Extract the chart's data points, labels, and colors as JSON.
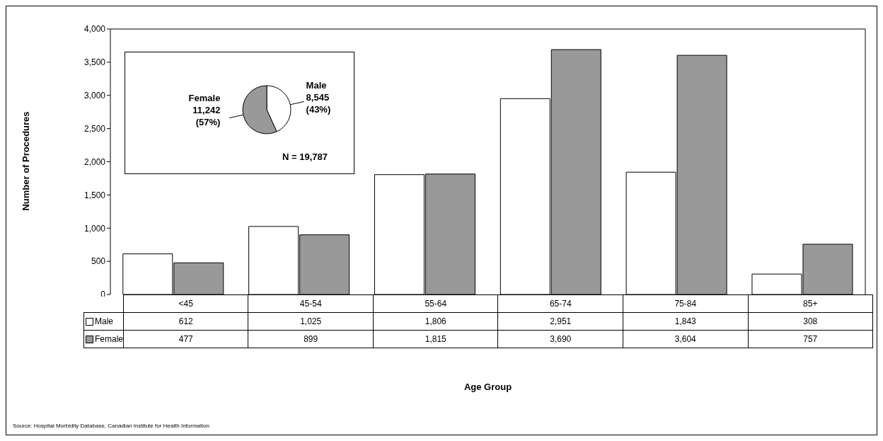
{
  "chart_data": [
    {
      "type": "bar",
      "xlabel": "Age Group",
      "ylabel": "Number of Procedures",
      "categories": [
        "<45",
        "45-54",
        "55-64",
        "65-74",
        "75-84",
        "85+"
      ],
      "series": [
        {
          "name": "Male",
          "color": "#ffffff",
          "values": [
            612,
            1025,
            1806,
            2951,
            1843,
            308
          ],
          "value_labels": [
            "612",
            "1,025",
            "1,806",
            "2,951",
            "1,843",
            "308"
          ]
        },
        {
          "name": "Female",
          "color": "#999999",
          "values": [
            477,
            899,
            1815,
            3690,
            3604,
            757
          ],
          "value_labels": [
            "477",
            "899",
            "1,815",
            "3,690",
            "3,604",
            "757"
          ]
        }
      ],
      "ylim": [
        0,
        4000
      ],
      "yticks": [
        0,
        {
          "value": 500,
          "label": "500"
        },
        {
          "value": 1000,
          "label": "1,000"
        },
        {
          "value": 1500,
          "label": "1,500"
        },
        {
          "value": 2000,
          "label": "2,000"
        },
        {
          "value": 2500,
          "label": "2,500"
        },
        {
          "value": 3000,
          "label": "3,000"
        },
        {
          "value": 3500,
          "label": "3,500"
        },
        {
          "value": 4000,
          "label": "4,000"
        }
      ],
      "grid": false,
      "legend": "bottom left",
      "annotations": [
        "Source: Hospital Morbidity Database, Canadian Institute for Health Information"
      ]
    },
    {
      "type": "pie",
      "categories": [
        "Male",
        "Female"
      ],
      "values": [
        8545,
        11242
      ],
      "colors": [
        "#ffffff",
        "#999999"
      ],
      "value_labels": [
        "8,545 (43%)",
        "11,242 (57%)"
      ],
      "annotations": [
        "N = 19,787"
      ]
    }
  ]
}
